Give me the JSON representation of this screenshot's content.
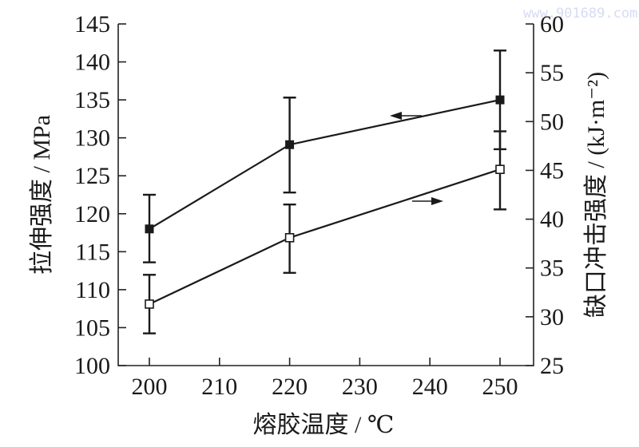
{
  "watermark": "www.901689.com",
  "chart_data": {
    "type": "line",
    "title": "",
    "xlabel": "熔胶温度 / ℃",
    "ylabel": "拉伸强度 / MPa",
    "y2label": "缺口冲击强度 / (kJ·m⁻²)",
    "x": [
      200,
      220,
      250
    ],
    "xticks": [
      200,
      210,
      220,
      230,
      240,
      250
    ],
    "xlim": [
      195,
      255
    ],
    "ylim": [
      100,
      145
    ],
    "yticks": [
      100,
      105,
      110,
      115,
      120,
      125,
      130,
      135,
      140,
      145
    ],
    "y2lim": [
      25,
      60
    ],
    "y2ticks": [
      25,
      30,
      35,
      40,
      45,
      50,
      55,
      60
    ],
    "grid": false,
    "legend": "none (arrows indicate axis)",
    "series": [
      {
        "name": "拉伸强度",
        "axis": "left",
        "marker": "filled-square",
        "values": [
          118.0,
          129.1,
          135.0
        ],
        "error_low": [
          113.6,
          122.8,
          128.5
        ],
        "error_high": [
          122.5,
          135.3,
          141.5
        ],
        "arrow": "left"
      },
      {
        "name": "缺口冲击强度",
        "axis": "right",
        "marker": "open-square",
        "values": [
          31.3,
          38.1,
          45.1
        ],
        "error_low": [
          28.3,
          34.5,
          41.0
        ],
        "error_high": [
          34.3,
          41.5,
          49.0
        ],
        "arrow": "right"
      }
    ]
  }
}
